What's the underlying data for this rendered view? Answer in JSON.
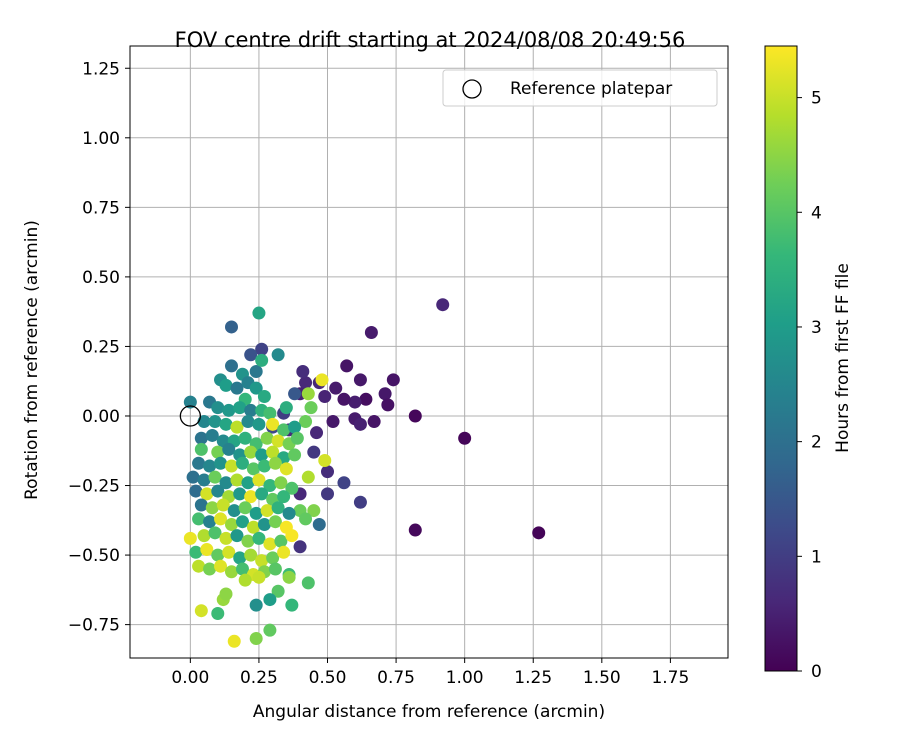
{
  "chart_data": {
    "type": "scatter",
    "title": "FOV centre drift starting at 2024/08/08 20:49:56",
    "xlabel": "Angular distance from reference (arcmin)",
    "ylabel": "Rotation from reference (arcmin)",
    "xlim": [
      -0.22,
      1.96
    ],
    "ylim": [
      -0.87,
      1.33
    ],
    "xticks": [
      "0.00",
      "0.25",
      "0.50",
      "0.75",
      "1.00",
      "1.25",
      "1.50",
      "1.75"
    ],
    "yticks": [
      "−0.75",
      "−0.50",
      "−0.25",
      "0.00",
      "0.25",
      "0.50",
      "0.75",
      "1.00",
      "1.25"
    ],
    "grid": true,
    "legend": {
      "placement": "upper-right",
      "entries": [
        "Reference platepar"
      ]
    },
    "reference_point": {
      "x": 0.0,
      "y": 0.0,
      "label": "Reference platepar"
    },
    "colorbar": {
      "label": "Hours from first FF file",
      "range": [
        0,
        5.45
      ],
      "ticks": [
        "0",
        "1",
        "2",
        "3",
        "4",
        "5"
      ],
      "colormap": "viridis"
    },
    "colors": {
      "viridis_stops": [
        "#440154",
        "#482878",
        "#3e4989",
        "#31688e",
        "#26828e",
        "#1f9e89",
        "#35b779",
        "#6ece58",
        "#b5de2b",
        "#fde725"
      ],
      "grid": "#b0b0b0",
      "axes": "#000000"
    },
    "points": [
      {
        "x": 0.82,
        "y": 0.0,
        "h": 0.1
      },
      {
        "x": 1.0,
        "y": -0.08,
        "h": 0.08
      },
      {
        "x": 1.27,
        "y": -0.42,
        "h": 0.05
      },
      {
        "x": 0.82,
        "y": -0.41,
        "h": 0.12
      },
      {
        "x": 0.92,
        "y": 0.4,
        "h": 0.6
      },
      {
        "x": 0.66,
        "y": 0.3,
        "h": 0.4
      },
      {
        "x": 0.74,
        "y": 0.13,
        "h": 0.3
      },
      {
        "x": 0.71,
        "y": 0.08,
        "h": 0.35
      },
      {
        "x": 0.72,
        "y": 0.04,
        "h": 0.25
      },
      {
        "x": 0.67,
        "y": -0.02,
        "h": 0.3
      },
      {
        "x": 0.64,
        "y": 0.06,
        "h": 0.2
      },
      {
        "x": 0.62,
        "y": 0.13,
        "h": 0.35
      },
      {
        "x": 0.6,
        "y": 0.05,
        "h": 0.45
      },
      {
        "x": 0.57,
        "y": 0.18,
        "h": 0.3
      },
      {
        "x": 0.56,
        "y": 0.06,
        "h": 0.3
      },
      {
        "x": 0.6,
        "y": -0.01,
        "h": 0.4
      },
      {
        "x": 0.62,
        "y": -0.03,
        "h": 0.5
      },
      {
        "x": 0.52,
        "y": -0.02,
        "h": 0.35
      },
      {
        "x": 0.53,
        "y": 0.1,
        "h": 0.4
      },
      {
        "x": 0.49,
        "y": 0.07,
        "h": 0.55
      },
      {
        "x": 0.47,
        "y": 0.12,
        "h": 0.6
      },
      {
        "x": 0.42,
        "y": 0.12,
        "h": 0.6
      },
      {
        "x": 0.41,
        "y": 0.16,
        "h": 0.7
      },
      {
        "x": 0.4,
        "y": 0.08,
        "h": 0.5
      },
      {
        "x": 0.46,
        "y": -0.06,
        "h": 0.6
      },
      {
        "x": 0.45,
        "y": -0.13,
        "h": 0.9
      },
      {
        "x": 0.5,
        "y": -0.2,
        "h": 0.7
      },
      {
        "x": 0.5,
        "y": -0.28,
        "h": 0.9
      },
      {
        "x": 0.56,
        "y": -0.24,
        "h": 1.1
      },
      {
        "x": 0.62,
        "y": -0.31,
        "h": 1.0
      },
      {
        "x": 0.47,
        "y": -0.39,
        "h": 1.9
      },
      {
        "x": 0.4,
        "y": -0.28,
        "h": 0.6
      },
      {
        "x": 0.4,
        "y": -0.47,
        "h": 0.8
      },
      {
        "x": 0.36,
        "y": -0.05,
        "h": 0.7
      },
      {
        "x": 0.38,
        "y": 0.08,
        "h": 1.5
      },
      {
        "x": 0.34,
        "y": 0.01,
        "h": 1.0
      },
      {
        "x": 0.3,
        "y": -0.04,
        "h": 1.2
      },
      {
        "x": 0.42,
        "y": -0.02,
        "h": 4.2
      },
      {
        "x": 0.44,
        "y": 0.03,
        "h": 4.2
      },
      {
        "x": 0.43,
        "y": 0.08,
        "h": 4.6
      },
      {
        "x": 0.48,
        "y": 0.13,
        "h": 5.3
      },
      {
        "x": 0.49,
        "y": -0.16,
        "h": 5.1
      },
      {
        "x": 0.43,
        "y": -0.22,
        "h": 4.8
      },
      {
        "x": 0.45,
        "y": -0.34,
        "h": 4.4
      },
      {
        "x": 0.4,
        "y": -0.34,
        "h": 4.2
      },
      {
        "x": 0.42,
        "y": -0.37,
        "h": 4.1
      },
      {
        "x": 0.43,
        "y": -0.6,
        "h": 3.9
      },
      {
        "x": 0.36,
        "y": -0.57,
        "h": 3.7
      },
      {
        "x": 0.37,
        "y": -0.68,
        "h": 3.6
      },
      {
        "x": 0.32,
        "y": -0.63,
        "h": 4.0
      },
      {
        "x": 0.29,
        "y": -0.66,
        "h": 3.0
      },
      {
        "x": 0.24,
        "y": -0.68,
        "h": 2.7
      },
      {
        "x": 0.29,
        "y": -0.77,
        "h": 4.1
      },
      {
        "x": 0.24,
        "y": -0.8,
        "h": 4.4
      },
      {
        "x": 0.16,
        "y": -0.81,
        "h": 5.3
      },
      {
        "x": 0.1,
        "y": -0.71,
        "h": 3.7
      },
      {
        "x": 0.12,
        "y": -0.66,
        "h": 4.6
      },
      {
        "x": 0.13,
        "y": -0.64,
        "h": 4.5
      },
      {
        "x": 0.04,
        "y": -0.7,
        "h": 5.1
      },
      {
        "x": 0.15,
        "y": 0.32,
        "h": 1.7
      },
      {
        "x": 0.25,
        "y": 0.37,
        "h": 3.2
      },
      {
        "x": 0.26,
        "y": 0.24,
        "h": 1.1
      },
      {
        "x": 0.32,
        "y": 0.22,
        "h": 2.6
      },
      {
        "x": 0.22,
        "y": 0.22,
        "h": 1.4
      },
      {
        "x": 0.15,
        "y": 0.18,
        "h": 2.0
      },
      {
        "x": 0.19,
        "y": 0.15,
        "h": 2.8
      },
      {
        "x": 0.24,
        "y": 0.16,
        "h": 2.2
      },
      {
        "x": 0.26,
        "y": 0.2,
        "h": 3.4
      },
      {
        "x": 0.11,
        "y": 0.13,
        "h": 2.7
      },
      {
        "x": 0.13,
        "y": 0.11,
        "h": 3.0
      },
      {
        "x": 0.17,
        "y": 0.1,
        "h": 2.2
      },
      {
        "x": 0.21,
        "y": 0.12,
        "h": 2.4
      },
      {
        "x": 0.24,
        "y": 0.1,
        "h": 2.9
      },
      {
        "x": 0.27,
        "y": 0.07,
        "h": 3.3
      },
      {
        "x": 0.2,
        "y": 0.06,
        "h": 3.6
      },
      {
        "x": 0.07,
        "y": 0.05,
        "h": 2.2
      },
      {
        "x": 0.0,
        "y": 0.05,
        "h": 2.4
      },
      {
        "x": 0.1,
        "y": 0.03,
        "h": 2.7
      },
      {
        "x": 0.14,
        "y": 0.02,
        "h": 2.9
      },
      {
        "x": 0.18,
        "y": 0.03,
        "h": 3.1
      },
      {
        "x": 0.22,
        "y": 0.02,
        "h": 2.3
      },
      {
        "x": 0.26,
        "y": 0.02,
        "h": 3.5
      },
      {
        "x": 0.29,
        "y": 0.01,
        "h": 3.8
      },
      {
        "x": 0.35,
        "y": 0.03,
        "h": 3.4
      },
      {
        "x": 0.05,
        "y": -0.02,
        "h": 2.5
      },
      {
        "x": 0.09,
        "y": -0.02,
        "h": 2.8
      },
      {
        "x": 0.13,
        "y": -0.03,
        "h": 3.2
      },
      {
        "x": 0.17,
        "y": -0.04,
        "h": 4.9
      },
      {
        "x": 0.21,
        "y": -0.02,
        "h": 2.6
      },
      {
        "x": 0.25,
        "y": -0.03,
        "h": 2.9
      },
      {
        "x": 0.3,
        "y": -0.03,
        "h": 5.3
      },
      {
        "x": 0.34,
        "y": -0.05,
        "h": 3.9
      },
      {
        "x": 0.38,
        "y": -0.04,
        "h": 3.0
      },
      {
        "x": 0.04,
        "y": -0.08,
        "h": 2.1
      },
      {
        "x": 0.08,
        "y": -0.07,
        "h": 2.3
      },
      {
        "x": 0.12,
        "y": -0.09,
        "h": 2.6
      },
      {
        "x": 0.16,
        "y": -0.09,
        "h": 3.2
      },
      {
        "x": 0.2,
        "y": -0.08,
        "h": 3.5
      },
      {
        "x": 0.24,
        "y": -0.1,
        "h": 3.8
      },
      {
        "x": 0.28,
        "y": -0.08,
        "h": 4.4
      },
      {
        "x": 0.32,
        "y": -0.09,
        "h": 5.1
      },
      {
        "x": 0.36,
        "y": -0.1,
        "h": 4.3
      },
      {
        "x": 0.39,
        "y": -0.08,
        "h": 4.0
      },
      {
        "x": 0.04,
        "y": -0.12,
        "h": 3.9
      },
      {
        "x": 0.1,
        "y": -0.13,
        "h": 4.3
      },
      {
        "x": 0.14,
        "y": -0.12,
        "h": 2.4
      },
      {
        "x": 0.18,
        "y": -0.14,
        "h": 2.8
      },
      {
        "x": 0.22,
        "y": -0.13,
        "h": 4.6
      },
      {
        "x": 0.26,
        "y": -0.14,
        "h": 3.0
      },
      {
        "x": 0.3,
        "y": -0.13,
        "h": 4.9
      },
      {
        "x": 0.34,
        "y": -0.15,
        "h": 3.3
      },
      {
        "x": 0.38,
        "y": -0.14,
        "h": 4.1
      },
      {
        "x": 0.03,
        "y": -0.17,
        "h": 2.2
      },
      {
        "x": 0.07,
        "y": -0.18,
        "h": 2.5
      },
      {
        "x": 0.11,
        "y": -0.17,
        "h": 2.8
      },
      {
        "x": 0.15,
        "y": -0.18,
        "h": 5.0
      },
      {
        "x": 0.19,
        "y": -0.17,
        "h": 3.4
      },
      {
        "x": 0.23,
        "y": -0.19,
        "h": 4.0
      },
      {
        "x": 0.27,
        "y": -0.18,
        "h": 3.7
      },
      {
        "x": 0.31,
        "y": -0.17,
        "h": 4.5
      },
      {
        "x": 0.35,
        "y": -0.19,
        "h": 5.2
      },
      {
        "x": 0.01,
        "y": -0.22,
        "h": 2.0
      },
      {
        "x": 0.05,
        "y": -0.23,
        "h": 2.3
      },
      {
        "x": 0.09,
        "y": -0.22,
        "h": 4.2
      },
      {
        "x": 0.13,
        "y": -0.24,
        "h": 2.6
      },
      {
        "x": 0.17,
        "y": -0.23,
        "h": 4.8
      },
      {
        "x": 0.21,
        "y": -0.24,
        "h": 3.1
      },
      {
        "x": 0.25,
        "y": -0.23,
        "h": 5.2
      },
      {
        "x": 0.29,
        "y": -0.25,
        "h": 3.6
      },
      {
        "x": 0.33,
        "y": -0.24,
        "h": 4.4
      },
      {
        "x": 0.37,
        "y": -0.26,
        "h": 3.9
      },
      {
        "x": 0.02,
        "y": -0.27,
        "h": 1.9
      },
      {
        "x": 0.06,
        "y": -0.28,
        "h": 5.1
      },
      {
        "x": 0.1,
        "y": -0.27,
        "h": 2.5
      },
      {
        "x": 0.14,
        "y": -0.29,
        "h": 4.7
      },
      {
        "x": 0.18,
        "y": -0.28,
        "h": 2.9
      },
      {
        "x": 0.22,
        "y": -0.29,
        "h": 5.3
      },
      {
        "x": 0.26,
        "y": -0.28,
        "h": 3.3
      },
      {
        "x": 0.3,
        "y": -0.3,
        "h": 4.1
      },
      {
        "x": 0.34,
        "y": -0.29,
        "h": 3.6
      },
      {
        "x": 0.04,
        "y": -0.32,
        "h": 2.1
      },
      {
        "x": 0.08,
        "y": -0.33,
        "h": 4.5
      },
      {
        "x": 0.12,
        "y": -0.32,
        "h": 5.0
      },
      {
        "x": 0.16,
        "y": -0.34,
        "h": 2.7
      },
      {
        "x": 0.2,
        "y": -0.33,
        "h": 4.2
      },
      {
        "x": 0.24,
        "y": -0.35,
        "h": 3.0
      },
      {
        "x": 0.28,
        "y": -0.34,
        "h": 5.1
      },
      {
        "x": 0.32,
        "y": -0.33,
        "h": 3.5
      },
      {
        "x": 0.36,
        "y": -0.35,
        "h": 2.6
      },
      {
        "x": 0.03,
        "y": -0.37,
        "h": 3.8
      },
      {
        "x": 0.07,
        "y": -0.38,
        "h": 2.4
      },
      {
        "x": 0.11,
        "y": -0.37,
        "h": 5.2
      },
      {
        "x": 0.15,
        "y": -0.39,
        "h": 4.6
      },
      {
        "x": 0.19,
        "y": -0.38,
        "h": 3.1
      },
      {
        "x": 0.23,
        "y": -0.4,
        "h": 4.9
      },
      {
        "x": 0.27,
        "y": -0.39,
        "h": 2.8
      },
      {
        "x": 0.31,
        "y": -0.38,
        "h": 4.3
      },
      {
        "x": 0.35,
        "y": -0.4,
        "h": 5.4
      },
      {
        "x": 0.0,
        "y": -0.44,
        "h": 5.3
      },
      {
        "x": 0.05,
        "y": -0.43,
        "h": 4.8
      },
      {
        "x": 0.09,
        "y": -0.42,
        "h": 3.9
      },
      {
        "x": 0.13,
        "y": -0.44,
        "h": 5.0
      },
      {
        "x": 0.17,
        "y": -0.43,
        "h": 2.9
      },
      {
        "x": 0.21,
        "y": -0.45,
        "h": 4.4
      },
      {
        "x": 0.25,
        "y": -0.44,
        "h": 3.6
      },
      {
        "x": 0.29,
        "y": -0.46,
        "h": 5.2
      },
      {
        "x": 0.33,
        "y": -0.45,
        "h": 4.0
      },
      {
        "x": 0.37,
        "y": -0.43,
        "h": 5.4
      },
      {
        "x": 0.02,
        "y": -0.49,
        "h": 3.7
      },
      {
        "x": 0.06,
        "y": -0.48,
        "h": 5.3
      },
      {
        "x": 0.1,
        "y": -0.5,
        "h": 4.1
      },
      {
        "x": 0.14,
        "y": -0.49,
        "h": 5.1
      },
      {
        "x": 0.18,
        "y": -0.51,
        "h": 3.2
      },
      {
        "x": 0.22,
        "y": -0.5,
        "h": 4.7
      },
      {
        "x": 0.26,
        "y": -0.52,
        "h": 5.0
      },
      {
        "x": 0.3,
        "y": -0.51,
        "h": 4.2
      },
      {
        "x": 0.34,
        "y": -0.49,
        "h": 5.3
      },
      {
        "x": 0.03,
        "y": -0.54,
        "h": 4.9
      },
      {
        "x": 0.07,
        "y": -0.55,
        "h": 4.3
      },
      {
        "x": 0.11,
        "y": -0.54,
        "h": 5.2
      },
      {
        "x": 0.15,
        "y": -0.56,
        "h": 4.6
      },
      {
        "x": 0.19,
        "y": -0.55,
        "h": 3.8
      },
      {
        "x": 0.23,
        "y": -0.57,
        "h": 5.1
      },
      {
        "x": 0.27,
        "y": -0.56,
        "h": 4.4
      },
      {
        "x": 0.31,
        "y": -0.55,
        "h": 4.0
      },
      {
        "x": 0.36,
        "y": -0.58,
        "h": 4.5
      },
      {
        "x": 0.2,
        "y": -0.59,
        "h": 4.8
      },
      {
        "x": 0.25,
        "y": -0.58,
        "h": 5.0
      }
    ]
  }
}
